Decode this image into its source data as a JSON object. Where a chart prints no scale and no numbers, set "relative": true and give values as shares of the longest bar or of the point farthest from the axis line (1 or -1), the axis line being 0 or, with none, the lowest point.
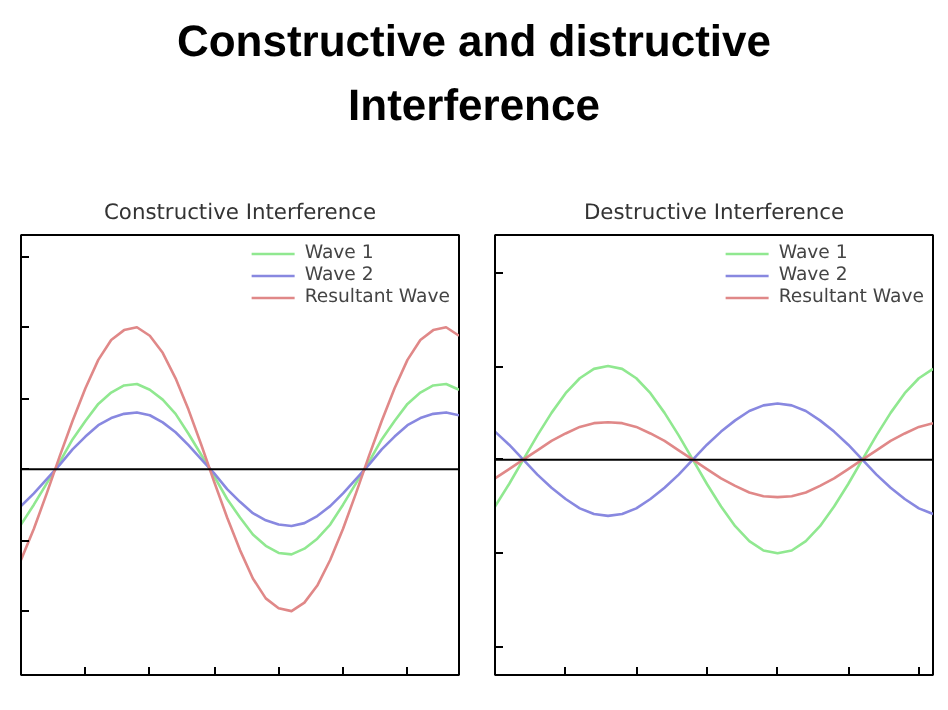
{
  "chart_data": [
    {
      "type": "line",
      "title": "Constructive and distructive Interference",
      "subtitle": "Constructive Interference",
      "relative": true,
      "legend": "top right",
      "grid": false,
      "tick_labels": false,
      "categories": [
        null,
        null,
        null,
        null,
        null,
        null,
        null,
        null,
        null,
        null,
        null,
        null,
        null,
        null,
        null,
        null,
        null,
        null,
        null,
        null,
        null,
        null,
        null,
        null,
        null,
        null,
        null,
        null,
        null,
        null,
        null,
        null,
        null,
        null,
        null
      ],
      "series": [
        {
          "name": "Wave 1",
          "color": "#90e890",
          "values": [
            -0.39,
            -0.25,
            -0.1,
            0.05,
            0.21,
            0.34,
            0.46,
            0.54,
            0.59,
            0.6,
            0.56,
            0.49,
            0.39,
            0.25,
            0.1,
            -0.05,
            -0.21,
            -0.34,
            -0.46,
            -0.54,
            -0.59,
            -0.6,
            -0.56,
            -0.49,
            -0.39,
            -0.25,
            -0.1,
            0.05,
            0.21,
            0.34,
            0.46,
            0.54,
            0.59,
            0.6,
            0.56
          ]
        },
        {
          "name": "Wave 2",
          "color": "#8888e0",
          "values": [
            -0.26,
            -0.17,
            -0.07,
            0.03,
            0.14,
            0.23,
            0.31,
            0.36,
            0.39,
            0.4,
            0.38,
            0.33,
            0.26,
            0.17,
            0.07,
            -0.03,
            -0.14,
            -0.23,
            -0.31,
            -0.36,
            -0.39,
            -0.4,
            -0.38,
            -0.33,
            -0.26,
            -0.17,
            -0.07,
            0.03,
            0.14,
            0.23,
            0.31,
            0.36,
            0.39,
            0.4,
            0.38
          ]
        },
        {
          "name": "Resultant Wave",
          "color": "#e08888",
          "values": [
            -0.64,
            -0.42,
            -0.17,
            0.09,
            0.34,
            0.57,
            0.77,
            0.91,
            0.98,
            1.0,
            0.94,
            0.82,
            0.64,
            0.42,
            0.17,
            -0.09,
            -0.34,
            -0.57,
            -0.77,
            -0.91,
            -0.98,
            -1.0,
            -0.94,
            -0.82,
            -0.64,
            -0.42,
            -0.17,
            0.09,
            0.34,
            0.57,
            0.77,
            0.91,
            0.98,
            1.0,
            0.94
          ]
        }
      ]
    },
    {
      "type": "line",
      "title": "Destructive Interference",
      "relative": true,
      "legend": "top right",
      "grid": false,
      "tick_labels": false,
      "categories": [
        null,
        null,
        null,
        null,
        null,
        null,
        null,
        null,
        null,
        null,
        null,
        null,
        null,
        null,
        null,
        null,
        null,
        null,
        null,
        null,
        null,
        null,
        null,
        null,
        null,
        null,
        null,
        null,
        null,
        null,
        null,
        null
      ],
      "series": [
        {
          "name": "Wave 1",
          "color": "#90e890",
          "values": [
            -0.5,
            -0.26,
            0,
            0.26,
            0.5,
            0.71,
            0.87,
            0.97,
            1,
            0.97,
            0.87,
            0.71,
            0.5,
            0.26,
            0,
            -0.26,
            -0.5,
            -0.71,
            -0.87,
            -0.97,
            -1,
            -0.97,
            -0.87,
            -0.71,
            -0.5,
            -0.26,
            0,
            0.26,
            0.5,
            0.71,
            0.87,
            0.97
          ]
        },
        {
          "name": "Wave 2",
          "color": "#8888e0",
          "values": [
            0.3,
            0.16,
            0,
            -0.16,
            -0.3,
            -0.42,
            -0.52,
            -0.58,
            -0.6,
            -0.58,
            -0.52,
            -0.42,
            -0.3,
            -0.16,
            0,
            0.16,
            0.3,
            0.42,
            0.52,
            0.58,
            0.6,
            0.58,
            0.52,
            0.42,
            0.3,
            0.16,
            0,
            -0.16,
            -0.3,
            -0.42,
            -0.52,
            -0.58
          ]
        },
        {
          "name": "Resultant Wave",
          "color": "#e08888",
          "values": [
            -0.2,
            -0.1,
            0,
            0.1,
            0.2,
            0.28,
            0.35,
            0.39,
            0.4,
            0.39,
            0.35,
            0.28,
            0.2,
            0.1,
            0,
            -0.1,
            -0.2,
            -0.28,
            -0.35,
            -0.39,
            -0.4,
            -0.39,
            -0.35,
            -0.28,
            -0.2,
            -0.1,
            0,
            0.1,
            0.2,
            0.28,
            0.35,
            0.39
          ]
        }
      ]
    }
  ]
}
